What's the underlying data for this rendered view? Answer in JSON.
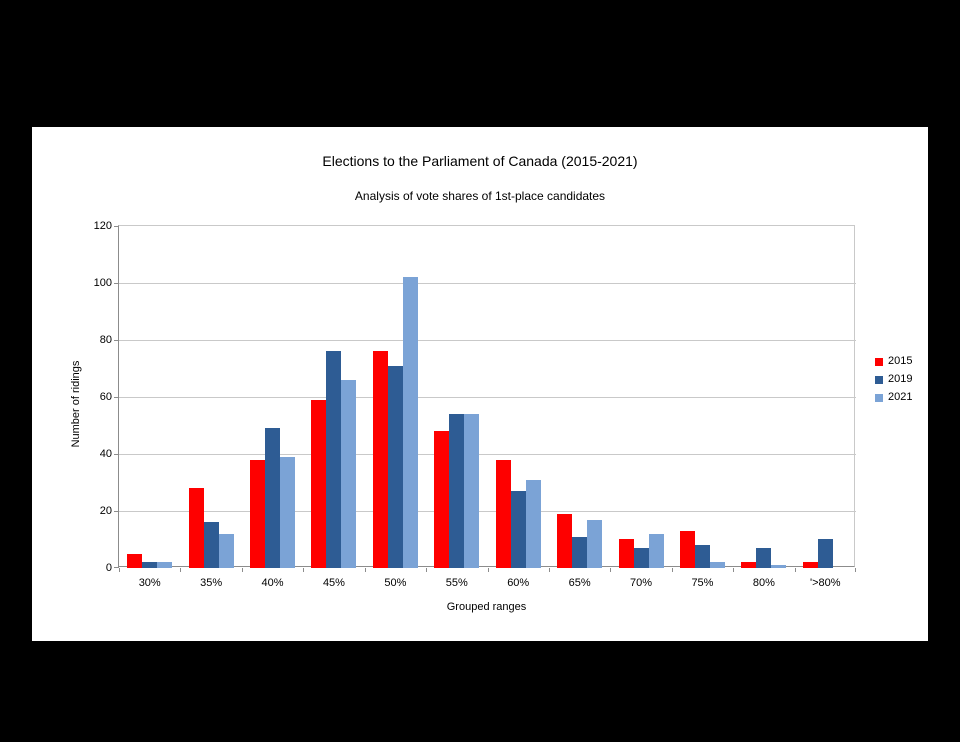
{
  "chart_data": {
    "type": "bar",
    "title": "Elections to the Parliament of Canada (2015-2021)",
    "subtitle": "Analysis of vote shares of 1st-place candidates",
    "xlabel": "Grouped ranges",
    "ylabel": "Number of ridings",
    "categories": [
      "30%",
      "35%",
      "40%",
      "45%",
      "50%",
      "55%",
      "60%",
      "65%",
      "70%",
      "75%",
      "80%",
      "'>80%"
    ],
    "series": [
      {
        "name": "2015",
        "color": "#fe0000",
        "values": [
          5,
          28,
          38,
          59,
          76,
          48,
          38,
          19,
          10,
          13,
          2,
          2
        ]
      },
      {
        "name": "2019",
        "color": "#2e5c94",
        "values": [
          2,
          16,
          49,
          76,
          71,
          54,
          27,
          11,
          7,
          8,
          7,
          10
        ]
      },
      {
        "name": "2021",
        "color": "#7ba3d6",
        "values": [
          2,
          12,
          39,
          66,
          102,
          54,
          31,
          17,
          12,
          2,
          1,
          0
        ]
      }
    ],
    "ylim": [
      0,
      120
    ],
    "yticks": [
      0,
      20,
      40,
      60,
      80,
      100,
      120
    ],
    "grid": true,
    "legend_position": "right",
    "colors": {
      "background": "#000000",
      "panel": "#ffffff",
      "gridline": "#c9c9c9",
      "axis": "#8c8c8c",
      "text": "#000000"
    }
  }
}
